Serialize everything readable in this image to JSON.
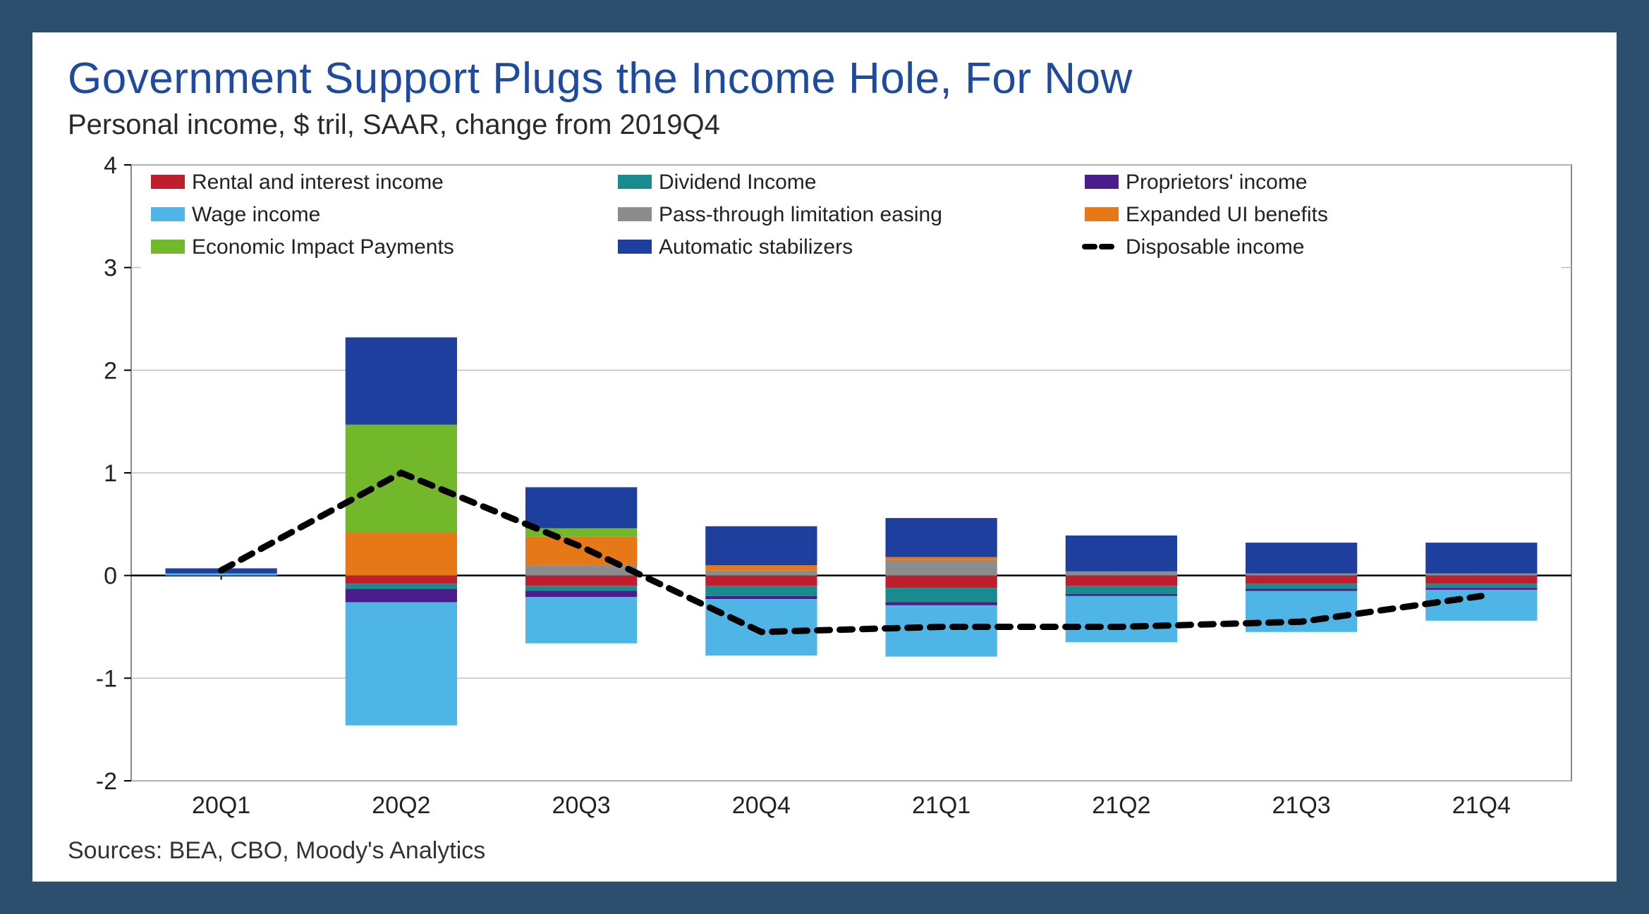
{
  "title": "Government Support Plugs the Income Hole, For Now",
  "subtitle": "Personal income, $ tril, SAAR, change from 2019Q4",
  "source": "Sources: BEA, CBO, Moody's Analytics",
  "chart": {
    "type": "stacked-bar-with-line",
    "categories": [
      "20Q1",
      "20Q2",
      "20Q3",
      "20Q4",
      "21Q1",
      "21Q2",
      "21Q3",
      "21Q4"
    ],
    "ylim": [
      -2,
      4
    ],
    "ytick_step": 1,
    "bar_width": 0.62,
    "background_color": "#ffffff",
    "axis_color": "#000000",
    "grid_color": "#bfbfbf",
    "frame_color": "#8a8a8a",
    "tick_fontsize": 34,
    "legend_fontsize": 30,
    "legend_position": "inside-top",
    "legend_cols": 3,
    "series": [
      {
        "key": "rental_interest",
        "label": "Rental and interest income",
        "color": "#be1e2d",
        "values": [
          0.0,
          -0.08,
          -0.1,
          -0.1,
          -0.12,
          -0.1,
          -0.08,
          -0.08
        ]
      },
      {
        "key": "dividend",
        "label": "Dividend Income",
        "color": "#1b8a8f",
        "values": [
          0.0,
          -0.05,
          -0.05,
          -0.1,
          -0.14,
          -0.08,
          -0.05,
          -0.04
        ]
      },
      {
        "key": "proprietors",
        "label": "Proprietors' income",
        "color": "#4b1c8c",
        "values": [
          0.0,
          -0.13,
          -0.06,
          -0.03,
          -0.03,
          -0.02,
          -0.02,
          -0.02
        ]
      },
      {
        "key": "wage",
        "label": "Wage income",
        "color": "#4fb5e6",
        "values": [
          0.02,
          -1.2,
          -0.45,
          -0.55,
          -0.5,
          -0.45,
          -0.4,
          -0.3
        ]
      },
      {
        "key": "passthrough",
        "label": "Pass-through limitation easing",
        "color": "#8c8c8c",
        "values": [
          0.0,
          0.0,
          0.1,
          0.05,
          0.15,
          0.04,
          0.02,
          0.02
        ]
      },
      {
        "key": "expanded_ui",
        "label": "Expanded UI benefits",
        "color": "#e77817",
        "values": [
          0.0,
          0.42,
          0.28,
          0.05,
          0.03,
          0.0,
          0.0,
          0.0
        ]
      },
      {
        "key": "eip",
        "label": "Economic Impact Payments",
        "color": "#73b82b",
        "values": [
          0.0,
          1.05,
          0.08,
          0.0,
          0.0,
          0.0,
          0.0,
          0.0
        ]
      },
      {
        "key": "auto_stab",
        "label": "Automatic stabilizers",
        "color": "#1e3f9e",
        "values": [
          0.05,
          0.85,
          0.4,
          0.38,
          0.38,
          0.35,
          0.3,
          0.3
        ]
      }
    ],
    "line": {
      "key": "disposable_income",
      "label": "Disposable income",
      "color": "#000000",
      "dash": "18,14",
      "width": 9,
      "values": [
        0.05,
        1.0,
        0.28,
        -0.55,
        -0.5,
        -0.5,
        -0.45,
        -0.2
      ]
    }
  }
}
